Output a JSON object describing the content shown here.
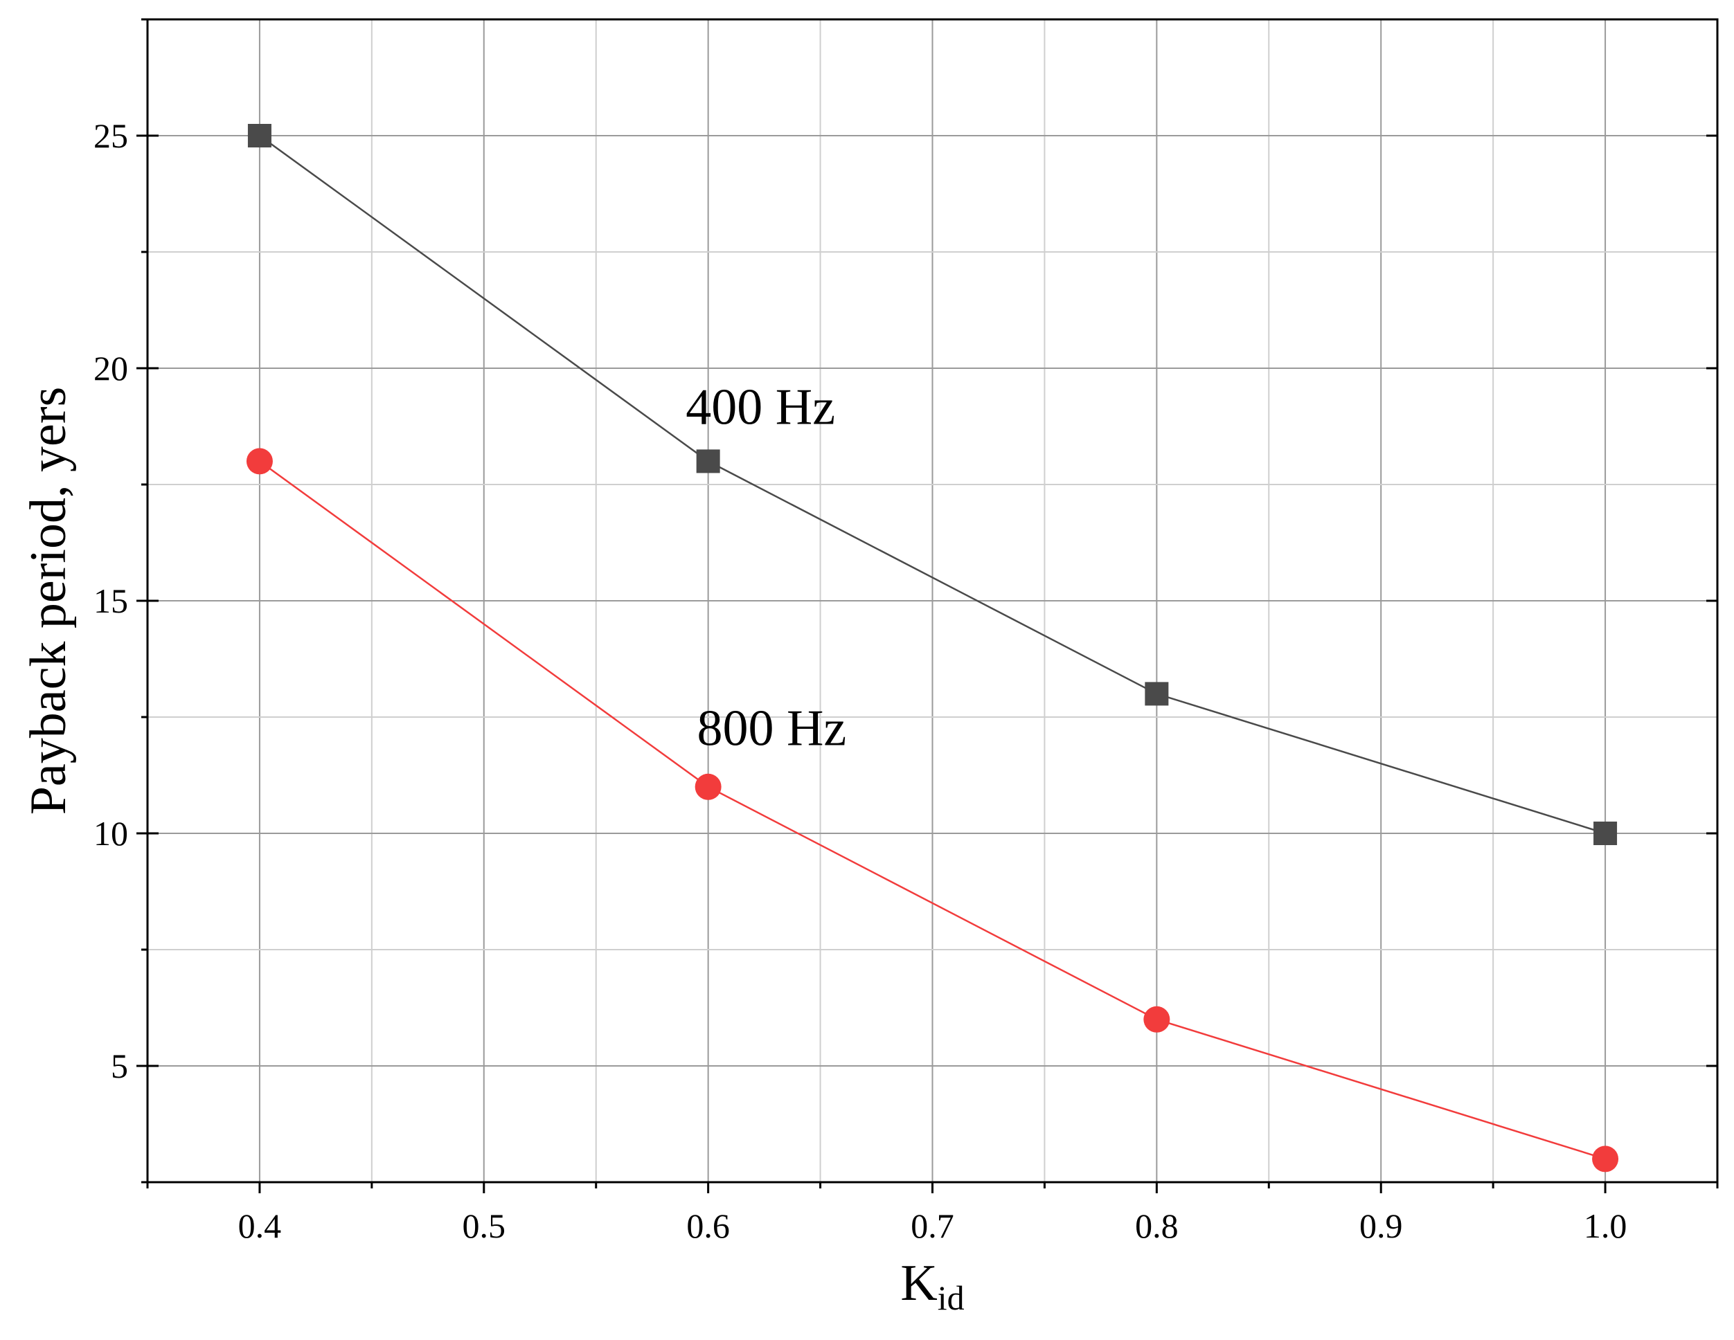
{
  "chart_data": {
    "type": "line",
    "xlabel_main": "K",
    "xlabel_sub": "id",
    "ylabel": "Payback period, yers",
    "xlim": [
      0.35,
      1.05
    ],
    "ylim": [
      2.5,
      27.5
    ],
    "x_ticks": [
      0.4,
      0.5,
      0.6,
      0.7,
      0.8,
      0.9,
      1.0
    ],
    "x_tick_labels": [
      "0.4",
      "0.5",
      "0.6",
      "0.7",
      "0.8",
      "0.9",
      "1.0"
    ],
    "x_minor_ticks": [
      0.35,
      0.45,
      0.55,
      0.65,
      0.75,
      0.85,
      0.95,
      1.05
    ],
    "y_ticks": [
      5,
      10,
      15,
      20,
      25
    ],
    "y_tick_labels": [
      "5",
      "10",
      "15",
      "20",
      "25"
    ],
    "y_minor_ticks": [
      2.5,
      7.5,
      12.5,
      17.5,
      22.5,
      27.5
    ],
    "grid": true,
    "x": [
      0.4,
      0.6,
      0.8,
      1.0
    ],
    "series": [
      {
        "values": [
          25,
          18,
          13,
          10
        ],
        "color": "#4a4a4a",
        "marker": "square"
      },
      {
        "values": [
          18,
          11,
          6,
          3
        ],
        "color": "#f23c3c",
        "marker": "circle"
      }
    ],
    "annotations": [
      {
        "text": "400 Hz",
        "x": 0.59,
        "y": 18.8
      },
      {
        "text": "800 Hz",
        "x": 0.595,
        "y": 11.9
      }
    ]
  }
}
